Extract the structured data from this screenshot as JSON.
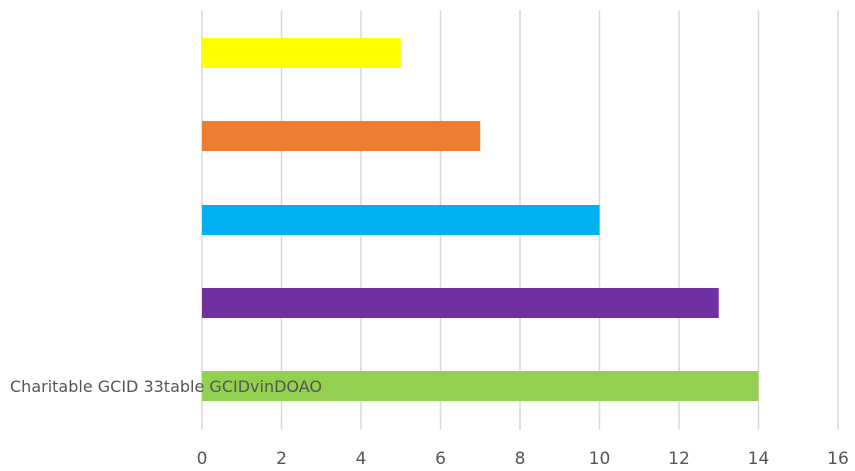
{
  "chart_data": {
    "type": "bar",
    "orientation": "horizontal",
    "categories": [
      "",
      "",
      "",
      "",
      ""
    ],
    "values": [
      5,
      7,
      10,
      13,
      14
    ],
    "bar_colors": [
      "#FFFF00",
      "#ED7D31",
      "#00B0F0",
      "#7030A0",
      "#92D050"
    ],
    "xlim": [
      0,
      16
    ],
    "x_ticks": [
      0,
      2,
      4,
      6,
      8,
      10,
      12,
      14,
      16
    ],
    "grid": "vertical",
    "title": "",
    "xlabel": "",
    "ylabel": "",
    "overlapping_category_text": "Charitable GCID 33table GCIDvinDOAO"
  }
}
